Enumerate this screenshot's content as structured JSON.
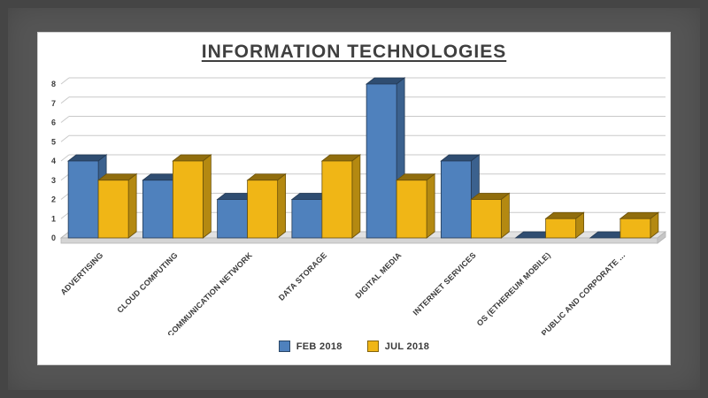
{
  "title": "INFORMATION TECHNOLOGIES",
  "chart_data": {
    "type": "bar",
    "style": "3d-column",
    "title": "INFORMATION TECHNOLOGIES",
    "categories": [
      "ADVERTISING",
      "CLOUD COMPUTING",
      "COMMUNICATION NETWORK",
      "DATA STORAGE",
      "DIGITAL MEDIA",
      "INTERNET SERVICES",
      "OS (ETHEREUM MOBILE)",
      "PUBLIC AND CORPORATE ..."
    ],
    "series": [
      {
        "name": "FEB 2018",
        "color": "#4f81bd",
        "values": [
          4,
          3,
          2,
          2,
          8,
          4,
          0,
          0
        ]
      },
      {
        "name": "JUL 2018",
        "color": "#f0b616",
        "values": [
          3,
          4,
          3,
          4,
          3,
          2,
          1,
          1
        ]
      }
    ],
    "ylim": [
      0,
      8
    ],
    "yticks": [
      0,
      1,
      2,
      3,
      4,
      5,
      6,
      7,
      8
    ],
    "grid": true,
    "legend_position": "bottom"
  },
  "colors": {
    "background": "#565656",
    "frame": "#454545",
    "card": "#ffffff",
    "grid": "#c9c9c9",
    "axis_text": "#3b3b3b",
    "floor_top": "#e2e2e2",
    "floor_front": "#d4d4d4",
    "floor_edge": "#b5b5b5"
  }
}
